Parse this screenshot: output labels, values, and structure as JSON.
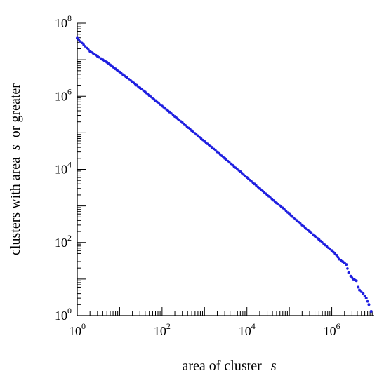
{
  "chart_data": {
    "type": "scatter",
    "xlabel": "area of cluster",
    "xlabel_var": "s",
    "ylabel_pre": "clusters with area",
    "ylabel_var": "s",
    "ylabel_post": "or greater",
    "x_scale": "log",
    "y_scale": "log",
    "xlim": [
      1,
      10000000
    ],
    "ylim": [
      1,
      100000000
    ],
    "x_ticks": [
      {
        "base": "10",
        "exp": "0",
        "value": 1
      },
      {
        "base": "10",
        "exp": "2",
        "value": 100
      },
      {
        "base": "10",
        "exp": "4",
        "value": 10000
      },
      {
        "base": "10",
        "exp": "6",
        "value": 1000000
      }
    ],
    "y_ticks": [
      {
        "base": "10",
        "exp": "0",
        "value": 1
      },
      {
        "base": "10",
        "exp": "2",
        "value": 100
      },
      {
        "base": "10",
        "exp": "4",
        "value": 10000
      },
      {
        "base": "10",
        "exp": "6",
        "value": 1000000
      },
      {
        "base": "10",
        "exp": "8",
        "value": 100000000
      }
    ],
    "grid": false,
    "marker_color": "#1f1fe0",
    "series": [
      {
        "points": [
          [
            1,
            39000000
          ],
          [
            2,
            17000000
          ],
          [
            3,
            12500000
          ],
          [
            4,
            10000000
          ],
          [
            5,
            8500000
          ],
          [
            6,
            7200000
          ],
          [
            7,
            6300000
          ],
          [
            8,
            5600000
          ],
          [
            10,
            4600000
          ],
          [
            12,
            3900000
          ],
          [
            15,
            3200000
          ],
          [
            20,
            2500000
          ],
          [
            25,
            2000000
          ],
          [
            30,
            1700000
          ],
          [
            40,
            1300000
          ],
          [
            50,
            1050000
          ],
          [
            70,
            760000
          ],
          [
            100,
            540000
          ],
          [
            150,
            370000
          ],
          [
            200,
            280000
          ],
          [
            300,
            190000
          ],
          [
            500,
            115000
          ],
          [
            700,
            83000
          ],
          [
            1000,
            58000
          ],
          [
            1500,
            40000
          ],
          [
            2000,
            30000
          ],
          [
            3000,
            20000
          ],
          [
            5000,
            12000
          ],
          [
            7000,
            8600
          ],
          [
            10000,
            6000
          ],
          [
            15000,
            4000
          ],
          [
            20000,
            3000
          ],
          [
            30000,
            2000
          ],
          [
            50000,
            1200
          ],
          [
            70000,
            880
          ],
          [
            100000,
            600
          ],
          [
            150000,
            400
          ],
          [
            200000,
            300
          ],
          [
            300000,
            200
          ],
          [
            400000,
            150
          ],
          [
            500000,
            120
          ],
          [
            700000,
            85
          ],
          [
            1000000,
            60
          ],
          [
            1300000,
            45
          ],
          [
            1500000,
            35
          ],
          [
            1800000,
            30
          ],
          [
            2000000,
            28
          ],
          [
            2200000,
            25
          ],
          [
            2500000,
            15
          ],
          [
            2800000,
            12
          ],
          [
            3200000,
            10
          ],
          [
            3800000,
            9
          ],
          [
            4200000,
            6
          ],
          [
            4500000,
            5
          ],
          [
            5500000,
            4
          ],
          [
            6500000,
            3
          ],
          [
            7500000,
            2
          ],
          [
            8500000,
            1.3
          ]
        ]
      }
    ]
  }
}
